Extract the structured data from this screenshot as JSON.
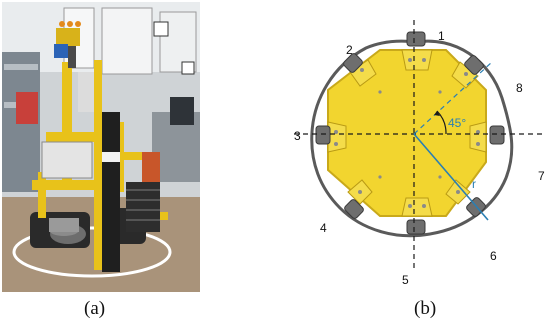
{
  "panel_a": {
    "caption": "(a)",
    "colors": {
      "frame": "#e8c21a",
      "floor": "#a9937a",
      "wall": "#cfd3d6"
    }
  },
  "panel_b": {
    "caption": "(b)",
    "angle_label": "45°",
    "radius_label": "r",
    "sensor_numbers": [
      "1",
      "2",
      "3",
      "4",
      "5",
      "6",
      "7",
      "8"
    ],
    "colors": {
      "plate": "#f2d52f",
      "plate_edge": "#c9a91a",
      "cable": "#5a5a5a",
      "axis": "#1a1a1a",
      "radius_line": "#2a7fb3"
    }
  }
}
